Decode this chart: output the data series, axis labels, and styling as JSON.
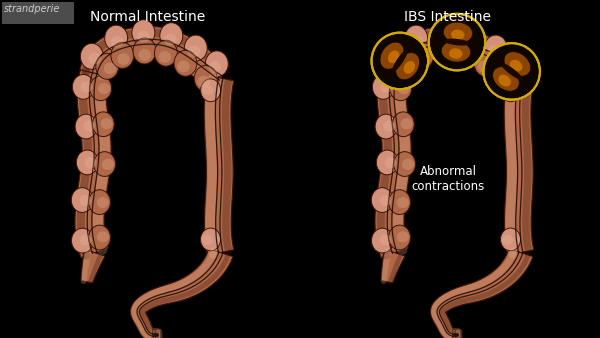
{
  "background_color": "#000000",
  "title_left": "Normal Intestine",
  "title_right": "IBS Intestine",
  "annotation_text": "Abnormal\ncontractions",
  "title_color": "#ffffff",
  "annotation_color": "#ffffff",
  "colon_base": "#b06848",
  "colon_light": "#d4917a",
  "colon_highlight": "#e8b89a",
  "colon_dark": "#6b3020",
  "colon_shadow": "#3a1508",
  "taenia_color": "#1a0800",
  "sigmoid_base": "#a05840",
  "contraction_dark": "#1a0800",
  "contraction_mid": "#8b4500",
  "contraction_bright": "#d07800",
  "contraction_gold": "#c8940a",
  "circle_color": "#d4aa00",
  "watermark_bg": "#666666",
  "watermark_text": "strandperie",
  "watermark_color": "#cccccc",
  "title_fontsize": 10,
  "annotation_fontsize": 8.5,
  "watermark_fontsize": 7
}
